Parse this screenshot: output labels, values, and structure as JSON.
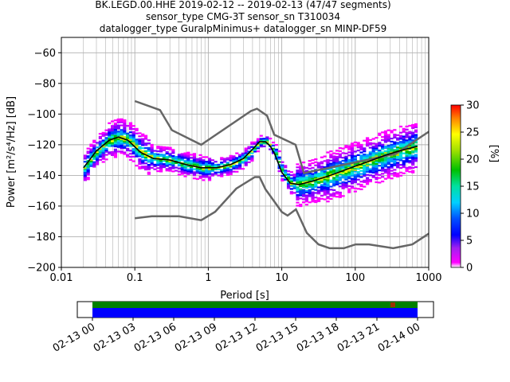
{
  "title_lines": [
    "BK.LEGD.00.HHE   2019-02-12 -- 2019-02-13  (47/47 segments)",
    "sensor_type CMG-3T sensor_sn T310034",
    "datalogger_type GuralpMinimus+ datalogger_sn MINP-DF59"
  ],
  "chart_data": [
    {
      "type": "heatmap",
      "title": "BK.LEGD.00.HHE   2019-02-12 -- 2019-02-13  (47/47 segments)",
      "xlabel": "Period [s]",
      "ylabel": "Power [m²/s⁴/Hz] [dB]",
      "xscale": "log",
      "xlim": [
        0.01,
        1000
      ],
      "ylim": [
        -200,
        -50
      ],
      "x_ticks": [
        "0.01",
        "0.1",
        "1",
        "10",
        "100",
        "1000"
      ],
      "y_ticks": [
        "−200",
        "−180",
        "−160",
        "−140",
        "−120",
        "−100",
        "−80",
        "−60"
      ],
      "grid": true,
      "colorbar": {
        "label": "[%]",
        "range": [
          0,
          30
        ],
        "ticks": [
          "0",
          "5",
          "10",
          "15",
          "20",
          "25",
          "30"
        ]
      },
      "mean_curve": {
        "x": [
          0.02,
          0.03,
          0.045,
          0.06,
          0.08,
          0.12,
          0.18,
          0.3,
          0.5,
          0.8,
          1.3,
          2,
          3,
          4,
          5,
          6,
          7,
          8,
          10,
          13,
          17,
          25,
          40,
          60,
          100,
          150,
          250,
          400,
          700
        ],
        "y": [
          -135,
          -124,
          -117,
          -115,
          -117,
          -125,
          -129,
          -130,
          -133,
          -135,
          -135,
          -133,
          -129,
          -123,
          -118,
          -118,
          -121,
          -126,
          -138,
          -145,
          -146,
          -144,
          -141,
          -138,
          -134,
          -131,
          -127,
          -124,
          -121
        ]
      },
      "noise_model_high": {
        "x": [
          0.1,
          0.22,
          0.32,
          0.8,
          3.8,
          4.6,
          6.3,
          7.9,
          15.4,
          20,
          354.8,
          1000
        ],
        "y": [
          -91.5,
          -97.4,
          -110.5,
          -120,
          -98,
          -96.5,
          -101,
          -113.5,
          -120,
          -138.5,
          -126,
          -111.5
        ]
      },
      "noise_model_low": {
        "x": [
          0.1,
          0.17,
          0.4,
          0.8,
          1.24,
          2.4,
          4.3,
          5,
          6,
          10,
          12,
          15.6,
          21.9,
          31.6,
          45,
          70,
          101,
          154,
          328,
          600,
          1000
        ],
        "y": [
          -168,
          -166.7,
          -166.7,
          -169.2,
          -163.7,
          -148.6,
          -141.1,
          -141.1,
          -149,
          -163.8,
          -166.2,
          -162.1,
          -177.5,
          -185,
          -187.5,
          -187.5,
          -185,
          -185,
          -187.5,
          -185,
          -178
        ]
      }
    },
    {
      "type": "timeline",
      "x_ticks": [
        "02-13 00",
        "02-13 03",
        "02-13 06",
        "02-13 09",
        "02-13 12",
        "02-13 15",
        "02-13 18",
        "02-13 21",
        "02-14 00"
      ],
      "coverage_start_hour": 0,
      "coverage_end_hour": 24,
      "colors": {
        "top_band": "#008000",
        "bottom_band": "#0000ff"
      }
    }
  ],
  "colors": {
    "mean_curve": "#000000",
    "noise_model": "#666666",
    "grid": "#b0b0b0"
  }
}
